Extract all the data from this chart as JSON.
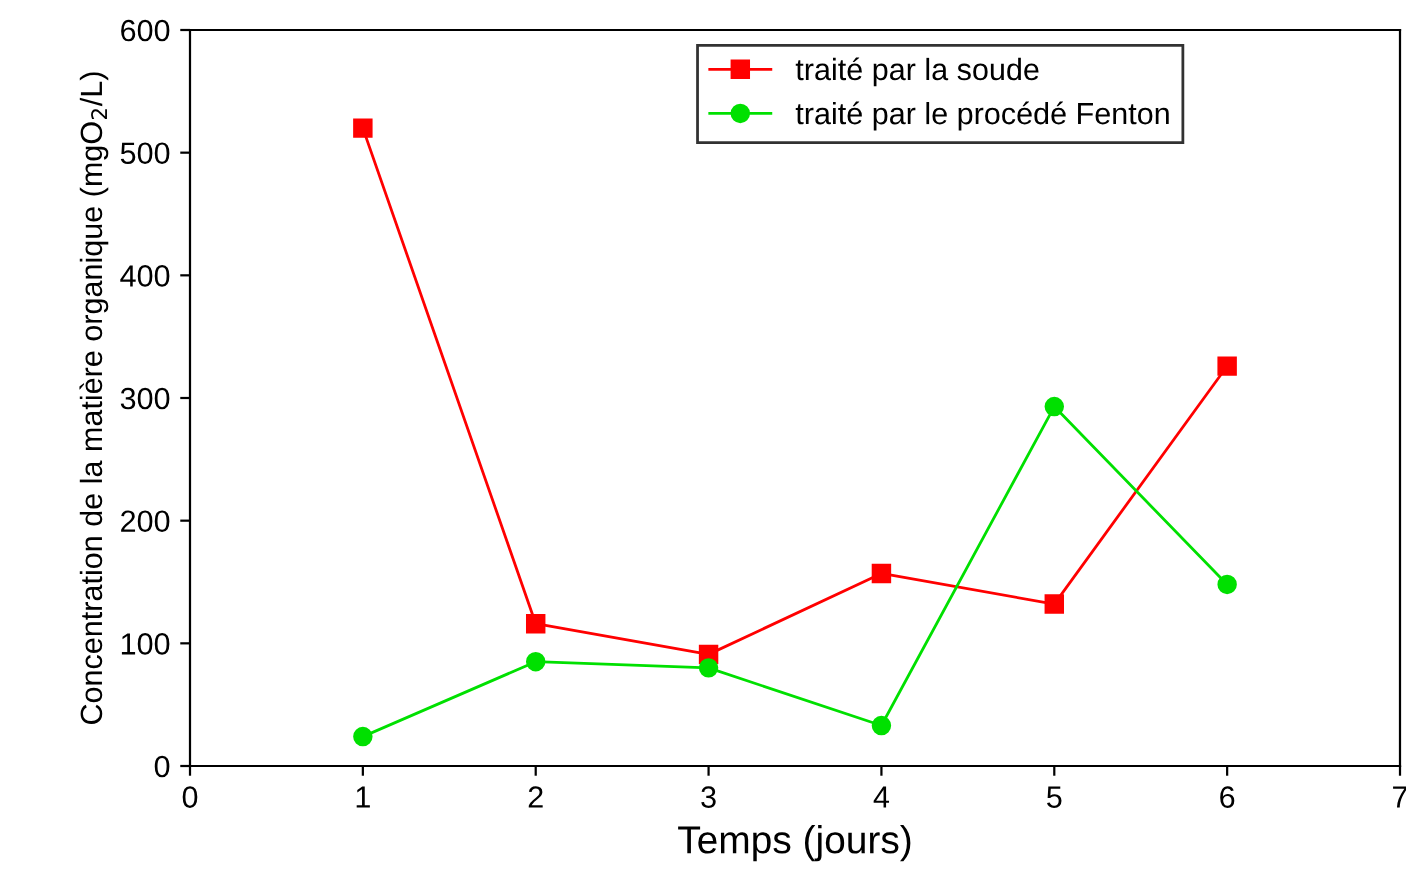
{
  "chart_data": {
    "type": "line",
    "xlabel": "Temps (jours)",
    "ylabel": "Concentration de la matière organique (mgO$_{2}$/L)",
    "x": [
      1,
      2,
      3,
      4,
      5,
      6
    ],
    "series": [
      {
        "name": "traité par la soude",
        "color": "#ff0000",
        "marker": "square",
        "values": [
          520,
          116,
          91,
          157,
          132,
          326
        ]
      },
      {
        "name": "traité par le procédé Fenton",
        "color": "#00e000",
        "marker": "circle",
        "values": [
          24,
          85,
          80,
          33,
          293,
          148
        ]
      }
    ],
    "xlim": [
      0,
      7
    ],
    "xticks": [
      0,
      1,
      2,
      3,
      4,
      5,
      6,
      7
    ],
    "ylim": [
      0,
      600
    ],
    "yticks": [
      0,
      100,
      200,
      300,
      400,
      500,
      600
    ],
    "grid": false,
    "legend": "top",
    "line_style": "solid"
  }
}
